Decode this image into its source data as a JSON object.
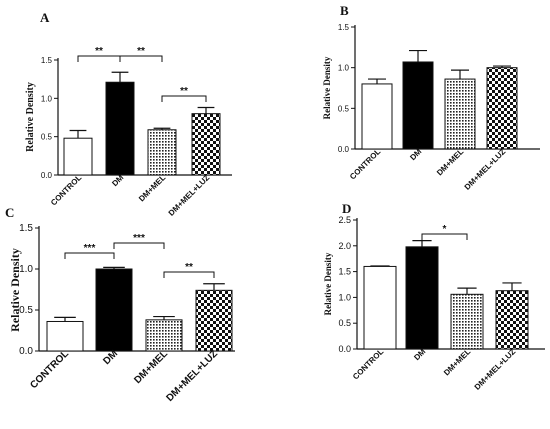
{
  "chart_data": [
    {
      "panel": "A",
      "type": "bar",
      "ylabel": "Relative Density",
      "ylim": [
        0,
        1.5
      ],
      "yticks": [
        "0.0",
        "0.5",
        "1.0",
        "1.5"
      ],
      "categories": [
        "CONTROL",
        "DM",
        "DM+MEL",
        "DM+MEL+LUZ"
      ],
      "values": [
        0.48,
        1.21,
        0.59,
        0.8
      ],
      "errors": [
        0.1,
        0.13,
        0.02,
        0.08
      ],
      "significance": [
        {
          "from": 0,
          "to": 1,
          "label": "**"
        },
        {
          "from": 1,
          "to": 2,
          "label": "**"
        },
        {
          "from": 2,
          "to": 3,
          "label": "**"
        }
      ]
    },
    {
      "panel": "B",
      "type": "bar",
      "ylabel": "Relative Density",
      "ylim": [
        0,
        1.5
      ],
      "yticks": [
        "0.0",
        "0.5",
        "1.0",
        "1.5"
      ],
      "categories": [
        "CONTROL",
        "DM",
        "DM+MEL",
        "DM+MEL+LUZ"
      ],
      "values": [
        0.8,
        1.07,
        0.86,
        1.0
      ],
      "errors": [
        0.06,
        0.14,
        0.11,
        0.02
      ],
      "significance": []
    },
    {
      "panel": "C",
      "type": "bar",
      "ylabel": "Relative Density",
      "ylim": [
        0,
        1.5
      ],
      "yticks": [
        "0.0",
        "0.5",
        "1.0",
        "1.5"
      ],
      "categories": [
        "CONTROL",
        "DM",
        "DM+MEL",
        "DM+MEL+LUZ"
      ],
      "values": [
        0.36,
        1.0,
        0.38,
        0.74
      ],
      "errors": [
        0.05,
        0.02,
        0.04,
        0.08
      ],
      "significance": [
        {
          "from": 0,
          "to": 1,
          "label": "***"
        },
        {
          "from": 1,
          "to": 2,
          "label": "***"
        },
        {
          "from": 2,
          "to": 3,
          "label": "**"
        }
      ]
    },
    {
      "panel": "D",
      "type": "bar",
      "ylabel": "Relative Density",
      "ylim": [
        0,
        2.5
      ],
      "yticks": [
        "0.0",
        "0.5",
        "1.0",
        "1.5",
        "2.0",
        "2.5"
      ],
      "categories": [
        "CONTROL",
        "DM",
        "DM+MEL",
        "DM+MEL+LUZ"
      ],
      "values": [
        1.6,
        1.98,
        1.06,
        1.13
      ],
      "errors": [
        0.01,
        0.12,
        0.12,
        0.15
      ],
      "significance": [
        {
          "from": 1,
          "to": 2,
          "label": "*"
        }
      ]
    }
  ]
}
